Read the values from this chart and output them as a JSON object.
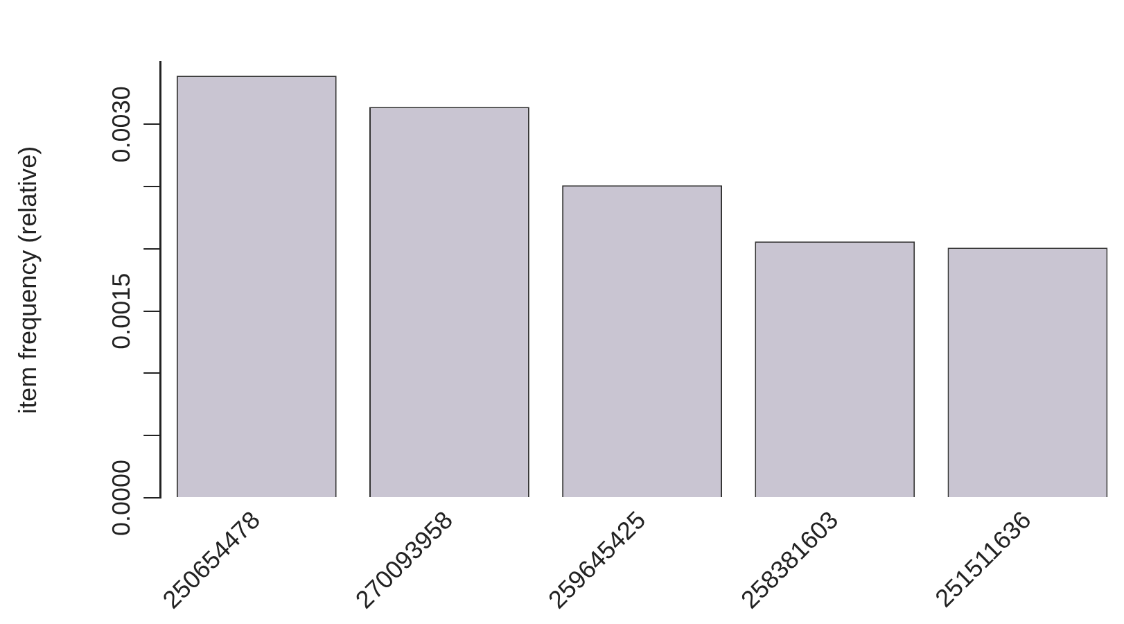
{
  "chart_data": {
    "type": "bar",
    "ylabel": "item frequency (relative)",
    "categories": [
      "250654478",
      "270093958",
      "259645425",
      "258381603",
      "251511636"
    ],
    "values": [
      0.00339,
      0.00314,
      0.00251,
      0.00206,
      0.00201
    ],
    "color": "#c9c5d2",
    "ylim": [
      0,
      0.0035
    ],
    "yticks": [
      {
        "value": 0,
        "label": "0.0000"
      },
      {
        "value": 0.0005,
        "label": null
      },
      {
        "value": 0.001,
        "label": null
      },
      {
        "value": 0.0015,
        "label": "0.0015"
      },
      {
        "value": 0.002,
        "label": null
      },
      {
        "value": 0.0025,
        "label": null
      },
      {
        "value": 0.003,
        "label": "0.0030"
      }
    ],
    "grid": false,
    "legend": false
  }
}
